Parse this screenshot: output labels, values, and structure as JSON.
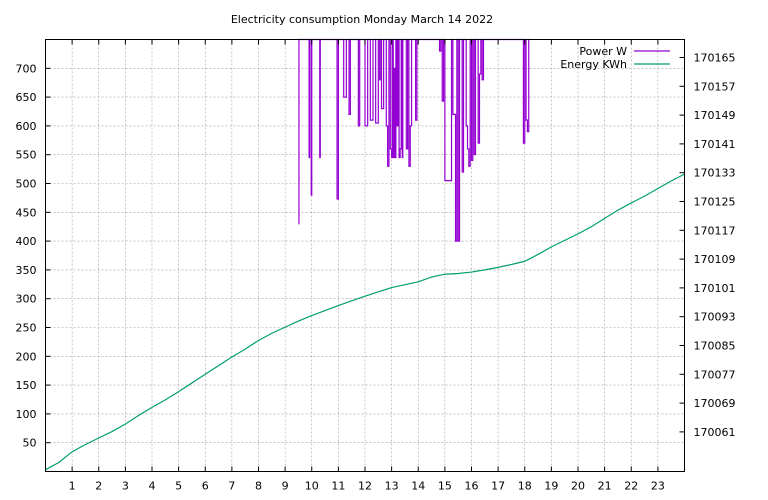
{
  "chart_data": {
    "type": "line",
    "title": "Electricity consumption Monday March 14 2022",
    "xlabel": "",
    "ylabel": "",
    "y2label": "",
    "xlim": [
      0,
      24
    ],
    "ylim": [
      0,
      750
    ],
    "y2lim": [
      170050,
      170170
    ],
    "grid": true,
    "legend_position": "top-right",
    "x_ticks": [
      1,
      2,
      3,
      4,
      5,
      6,
      7,
      8,
      9,
      10,
      11,
      12,
      13,
      14,
      15,
      16,
      17,
      18,
      19,
      20,
      21,
      22,
      23
    ],
    "y_ticks": [
      50,
      100,
      150,
      200,
      250,
      300,
      350,
      400,
      450,
      500,
      550,
      600,
      650,
      700
    ],
    "y2_ticks": [
      170061,
      170069,
      170077,
      170085,
      170093,
      170101,
      170109,
      170117,
      170125,
      170133,
      170141,
      170149,
      170157,
      170165
    ],
    "series": [
      {
        "name": "Power W",
        "axis": "y1",
        "color": "#9400d3",
        "step": true,
        "x": [
          9.5,
          9.52,
          9.56,
          9.6,
          9.7,
          9.8,
          9.9,
          9.92,
          9.98,
          10.0,
          10.08,
          10.1,
          10.3,
          10.32,
          10.36,
          10.4,
          10.6,
          10.8,
          10.85,
          10.9,
          10.95,
          11.0,
          11.05,
          11.1,
          11.2,
          11.3,
          11.4,
          11.45,
          11.55,
          11.6,
          11.75,
          11.8,
          11.9,
          12.0,
          12.1,
          12.2,
          12.3,
          12.4,
          12.5,
          12.55,
          12.6,
          12.62,
          12.7,
          12.75,
          12.8,
          12.85,
          12.9,
          12.95,
          13.0,
          13.02,
          13.06,
          13.1,
          13.12,
          13.16,
          13.2,
          13.24,
          13.28,
          13.32,
          13.36,
          13.4,
          13.42,
          13.46,
          13.5,
          13.55,
          13.6,
          13.65,
          13.7,
          13.75,
          13.8,
          13.85,
          13.9,
          13.95,
          14.0,
          14.1,
          14.8,
          14.85,
          14.9,
          14.95,
          15.0,
          15.2,
          15.25,
          15.3,
          15.4,
          15.45,
          15.5,
          15.55,
          15.6,
          15.65,
          15.7,
          15.75,
          15.8,
          15.85,
          15.9,
          15.95,
          16.0,
          16.05,
          16.1,
          16.15,
          16.2,
          16.25,
          16.3,
          16.35,
          16.4,
          16.45,
          16.5,
          17.9,
          17.95,
          18.0,
          18.05,
          18.1,
          18.15
        ],
        "y": [
          430,
          760,
          760,
          760,
          760,
          760,
          545,
          760,
          480,
          760,
          760,
          760,
          545,
          760,
          760,
          760,
          760,
          760,
          760,
          760,
          473,
          760,
          760,
          760,
          650,
          760,
          620,
          760,
          760,
          760,
          600,
          760,
          760,
          600,
          760,
          610,
          760,
          605,
          760,
          680,
          760,
          630,
          760,
          760,
          600,
          530,
          760,
          560,
          545,
          760,
          545,
          700,
          545,
          760,
          600,
          760,
          545,
          560,
          760,
          545,
          760,
          760,
          760,
          560,
          760,
          530,
          600,
          760,
          760,
          760,
          610,
          760,
          760,
          760,
          730,
          760,
          643,
          760,
          505,
          505,
          760,
          620,
          400,
          760,
          400,
          760,
          760,
          520,
          760,
          760,
          600,
          560,
          530,
          760,
          540,
          760,
          550,
          760,
          760,
          570,
          690,
          760,
          680,
          760,
          760,
          760,
          570,
          760,
          610,
          590,
          760
        ],
        "step_end": 18.2
      },
      {
        "name": "Energy KWh",
        "axis": "y2",
        "color": "#009e73",
        "step": false,
        "x": [
          0,
          0.5,
          1,
          1.5,
          2,
          2.5,
          3,
          3.5,
          4,
          4.5,
          5,
          5.5,
          6,
          6.5,
          7,
          7.5,
          8,
          8.5,
          9,
          9.5,
          10,
          10.5,
          11,
          11.5,
          12,
          12.5,
          13,
          13.5,
          14,
          14.5,
          15,
          15.5,
          16,
          16.5,
          17,
          17.5,
          18,
          18.5,
          19,
          19.5,
          20,
          20.5,
          21,
          21.5,
          22,
          22.5,
          23,
          23.5,
          24
        ],
        "y": [
          170050.5,
          170052.5,
          170055.5,
          170057.5,
          170059.3,
          170061.1,
          170063.2,
          170065.6,
          170067.8,
          170069.9,
          170072.2,
          170074.6,
          170077.0,
          170079.4,
          170081.8,
          170084.0,
          170086.4,
          170088.4,
          170090.1,
          170091.8,
          170093.3,
          170094.7,
          170096.1,
          170097.4,
          170098.7,
          170099.9,
          170101.1,
          170101.9,
          170102.7,
          170104.0,
          170104.8,
          170105.0,
          170105.4,
          170106.0,
          170106.7,
          170107.5,
          170108.4,
          170110.3,
          170112.4,
          170114.2,
          170116.0,
          170118.0,
          170120.3,
          170122.6,
          170124.6,
          170126.5,
          170128.6,
          170130.7,
          170132.6
        ]
      }
    ]
  }
}
